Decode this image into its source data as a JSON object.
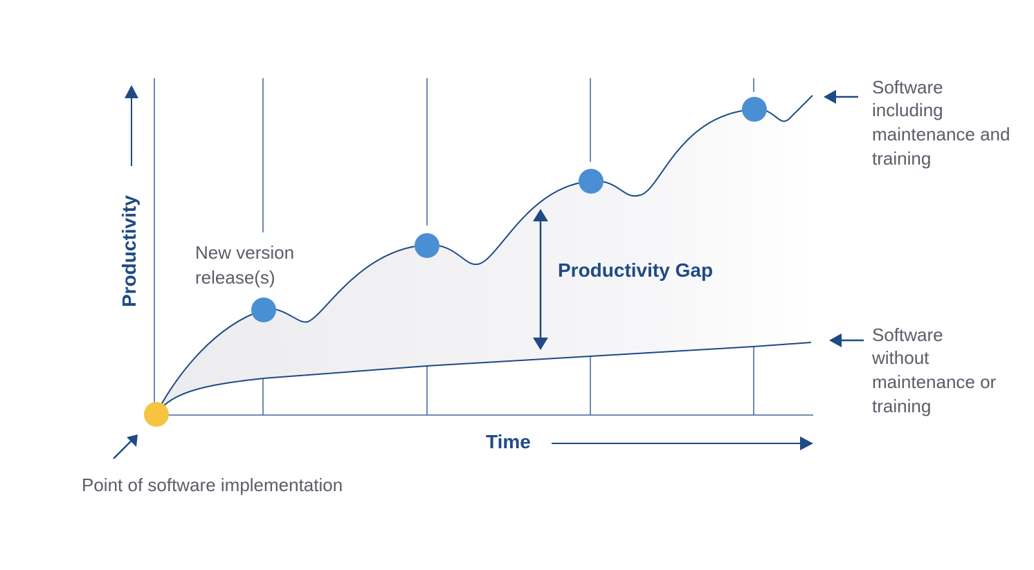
{
  "axes": {
    "y_label": "Productivity",
    "x_label": "Time"
  },
  "labels": {
    "release": [
      "New version",
      "release(s)"
    ],
    "gap": "Productivity Gap",
    "upper_curve": [
      "Software",
      "including",
      "maintenance and",
      "training"
    ],
    "lower_curve": [
      "Software",
      "without",
      "maintenance or",
      "training"
    ],
    "origin": "Point of software implementation"
  },
  "colors": {
    "line": "#1f4a86",
    "release_marker": "#4a8fd4",
    "origin_marker": "#f5c542",
    "gap_fill": "#f3f3f5",
    "text": "#5c5c6a"
  }
}
